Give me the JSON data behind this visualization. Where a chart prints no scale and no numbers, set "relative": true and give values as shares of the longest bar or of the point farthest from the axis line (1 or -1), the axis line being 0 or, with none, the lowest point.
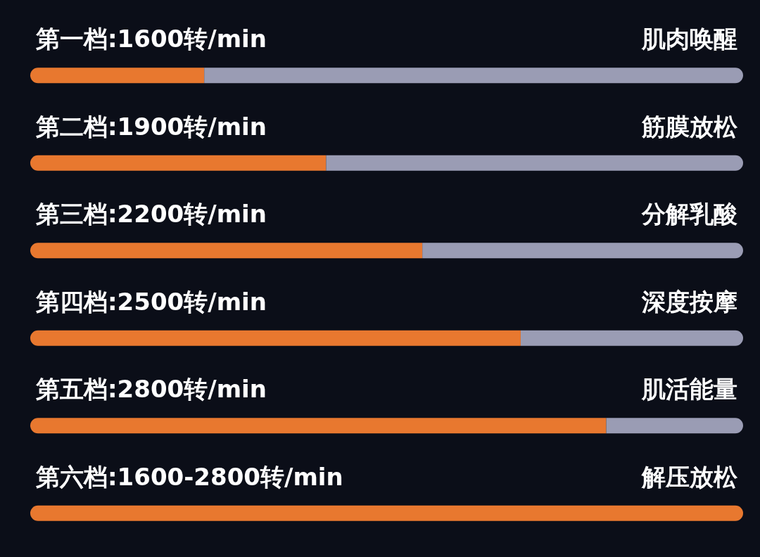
{
  "chart_data": {
    "type": "bar",
    "orientation": "horizontal",
    "stacked": true,
    "relative": true,
    "categories": [
      "第一档:1600转/min",
      "第二档:1900转/min",
      "第三档:2200转/min",
      "第四档:2500转/min",
      "第五档:2800转/min",
      "第六档:1600-2800转/min"
    ],
    "series": [
      {
        "color": "#e8782f",
        "values": [
          0.244,
          0.415,
          0.55,
          0.688,
          0.808,
          1
        ]
      },
      {
        "color": "#9a9cb4",
        "values": [
          0.756,
          0.585,
          0.45,
          0.312,
          0.192,
          0
        ]
      }
    ],
    "annotations": [
      "肌肉唤醒",
      "筋膜放松",
      "分解乳酸",
      "深度按摩",
      "肌活能量",
      "解压放松"
    ]
  }
}
